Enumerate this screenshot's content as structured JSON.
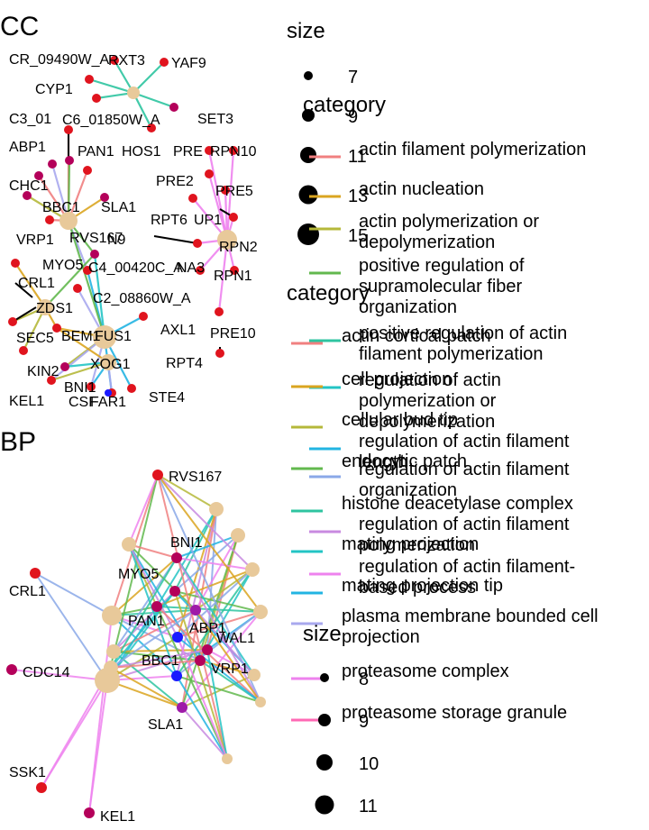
{
  "panels": [
    {
      "title": "CC",
      "nodes": [
        {
          "id": "hub_cc1",
          "label": "",
          "cat": true
        },
        {
          "id": "BBC1_cc",
          "label": "BBC1",
          "cat": true
        },
        {
          "id": "RPN2_cc",
          "label": "RPN2",
          "cat": true
        },
        {
          "id": "FUS1_cc",
          "label": "FUS1",
          "cat": true
        },
        {
          "id": "ZDS1_cc",
          "label": "ZDS1",
          "cat": true
        },
        {
          "id": "XOG1_cc",
          "label": "XOG1",
          "cat": true
        },
        {
          "id": "CR_09490W",
          "label": "CR_09490W_A",
          "color": "#e0141e"
        },
        {
          "id": "RXT3",
          "label": "RXT3",
          "color": "#e0141e"
        },
        {
          "id": "YAF9",
          "label": "YAF9",
          "color": "#e0141e"
        },
        {
          "id": "CYP1",
          "label": "CYP1",
          "color": "#e0141e"
        },
        {
          "id": "SET3",
          "label": "SET3",
          "color": "#b4005a"
        },
        {
          "id": "C3_01",
          "label": "C3_01",
          "color": "#e0141e"
        },
        {
          "id": "C6_01850W",
          "label": "C6_01850W_A",
          "color": "#e0141e"
        },
        {
          "id": "ABP1_cc",
          "label": "ABP1",
          "color": "#b4005a"
        },
        {
          "id": "PAN1_cc",
          "label": "PAN1",
          "color": "#b4005a"
        },
        {
          "id": "HOS1",
          "label": "HOS1",
          "color": "#e0141e"
        },
        {
          "id": "PRE_a",
          "label": "PRE",
          "color": "#e0141e"
        },
        {
          "id": "RPN10",
          "label": "RPN10",
          "color": "#e0141e"
        },
        {
          "id": "CHC1",
          "label": "CHC1",
          "color": "#b4005a"
        },
        {
          "id": "SLA1_cc",
          "label": "SLA1",
          "color": "#b4005a"
        },
        {
          "id": "PRE2",
          "label": "PRE2",
          "color": "#e0141e"
        },
        {
          "id": "PRE5",
          "label": "PRE5",
          "color": "#e0141e"
        },
        {
          "id": "RPT6",
          "label": "RPT6",
          "color": "#e0141e"
        },
        {
          "id": "UP1",
          "label": "UP1",
          "color": "#e0141e"
        },
        {
          "id": "VRP1_cc",
          "label": "VRP1",
          "color": "#b4005a"
        },
        {
          "id": "RVS167_cc",
          "label": "RVS167",
          "color": "#e0141e"
        },
        {
          "id": "N9",
          "label": "N9",
          "color": "#e0141e"
        },
        {
          "id": "MYO5_cc",
          "label": "MYO5",
          "color": "#b4005a"
        },
        {
          "id": "C4_00420C",
          "label": "C4_00420C_A",
          "color": "#e0141e"
        },
        {
          "id": "NA3",
          "label": "NA3",
          "color": "#e0141e"
        },
        {
          "id": "RPN1",
          "label": "RPN1",
          "color": "#e0141e"
        },
        {
          "id": "CRL1_cc",
          "label": "CRL1",
          "color": "#e0141e"
        },
        {
          "id": "C2_08860W",
          "label": "C2_08860W_A",
          "color": "#e0141e"
        },
        {
          "id": "AXL1",
          "label": "AXL1",
          "color": "#e0141e"
        },
        {
          "id": "PRE10",
          "label": "PRE10",
          "color": "#e0141e"
        },
        {
          "id": "SEC5",
          "label": "SEC5",
          "color": "#e0141e"
        },
        {
          "id": "BEM1",
          "label": "BEM1",
          "color": "#e0141e"
        },
        {
          "id": "RPT4",
          "label": "RPT4",
          "color": "#e0141e"
        },
        {
          "id": "KIN2",
          "label": "KIN2",
          "color": "#e0141e"
        },
        {
          "id": "BNI1_cc",
          "label": "BNI1",
          "color": "#b4005a"
        },
        {
          "id": "STE4",
          "label": "STE4",
          "color": "#e0141e"
        },
        {
          "id": "KEL1_cc",
          "label": "KEL1",
          "color": "#e0141e"
        },
        {
          "id": "CSF",
          "label": "CSF",
          "color": "#e0141e"
        },
        {
          "id": "FAR1",
          "label": "FAR1",
          "color": "#e0141e"
        },
        {
          "id": "BB",
          "label": "",
          "color": "#1a1aff"
        }
      ]
    },
    {
      "title": "BP",
      "nodes": [
        {
          "id": "RVS167_bp",
          "label": "RVS167",
          "color": "#e0141e"
        },
        {
          "id": "BNI1_bp",
          "label": "BNI1",
          "color": "#b4005a"
        },
        {
          "id": "MYO5_bp",
          "label": "MYO5",
          "color": "#b4005a"
        },
        {
          "id": "CRL1_bp",
          "label": "CRL1",
          "color": "#e0141e"
        },
        {
          "id": "PAN1_bp",
          "label": "PAN1",
          "color": "#b4005a"
        },
        {
          "id": "ABP1_bp",
          "label": "ABP1",
          "color": "#9e1aa8"
        },
        {
          "id": "WAL1_bp",
          "label": "WAL1",
          "color": "#b4005a"
        },
        {
          "id": "BBC1_bp",
          "label": "BBC1",
          "color": "#1a1aff"
        },
        {
          "id": "VRP1_bp",
          "label": "VRP1",
          "color": "#b4005a"
        },
        {
          "id": "CDC14_bp",
          "label": "CDC14",
          "color": "#b4005a"
        },
        {
          "id": "SLA1_bp",
          "label": "SLA1",
          "color": "#9e1aa8"
        },
        {
          "id": "SSK1_bp",
          "label": "SSK1",
          "color": "#e0141e"
        },
        {
          "id": "KEL1_bp",
          "label": "KEL1",
          "color": "#b4005a"
        }
      ]
    }
  ],
  "legends": {
    "cc_size": {
      "title": "size",
      "items": [
        "7",
        "9",
        "11",
        "13",
        "15"
      ]
    },
    "bp_category": {
      "title": "category",
      "items": [
        {
          "label": "actin filament polymerization",
          "color": "#f08080"
        },
        {
          "label": "actin nucleation",
          "color": "#daa520"
        },
        {
          "label": "actin polymerization or depolymerization",
          "color": "#b5b83a"
        },
        {
          "label": "positive regulation of supramolecular fiber organization",
          "color": "#62b84e"
        },
        {
          "label": "positive regulation of actin filament polymerization",
          "color": "#2ec4a0"
        },
        {
          "label": "regulation of actin polymerization or depolymerization",
          "color": "#23c4c4"
        },
        {
          "label": "regulation of actin filament length",
          "color": "#22b4e2"
        },
        {
          "label": "regulation of actin filament organization",
          "color": "#8aa8e8"
        },
        {
          "label": "regulation of actin filament polymerization",
          "color": "#c88ae0"
        },
        {
          "label": "regulation of actin filament-based process",
          "color": "#ee82ee"
        }
      ]
    },
    "cc_category": {
      "title": "category",
      "items": [
        {
          "label": "actin cortical patch",
          "color": "#f08080"
        },
        {
          "label": "cell projection",
          "color": "#daa520"
        },
        {
          "label": "cellular bud tip",
          "color": "#b5b83a"
        },
        {
          "label": "endocytic patch",
          "color": "#62b84e"
        },
        {
          "label": "histone deacetylase complex",
          "color": "#2ec4a0"
        },
        {
          "label": "mating projection",
          "color": "#23c4c4"
        },
        {
          "label": "mating projection tip",
          "color": "#22b4e2"
        },
        {
          "label": "plasma membrane bounded cell projection",
          "color": "#a8a8ee"
        },
        {
          "label": "proteasome complex",
          "color": "#ee82ee"
        },
        {
          "label": "proteasome storage granule",
          "color": "#ff69b4"
        }
      ]
    },
    "bp_size": {
      "title": "size",
      "items": [
        "8",
        "9",
        "10",
        "11"
      ]
    }
  }
}
